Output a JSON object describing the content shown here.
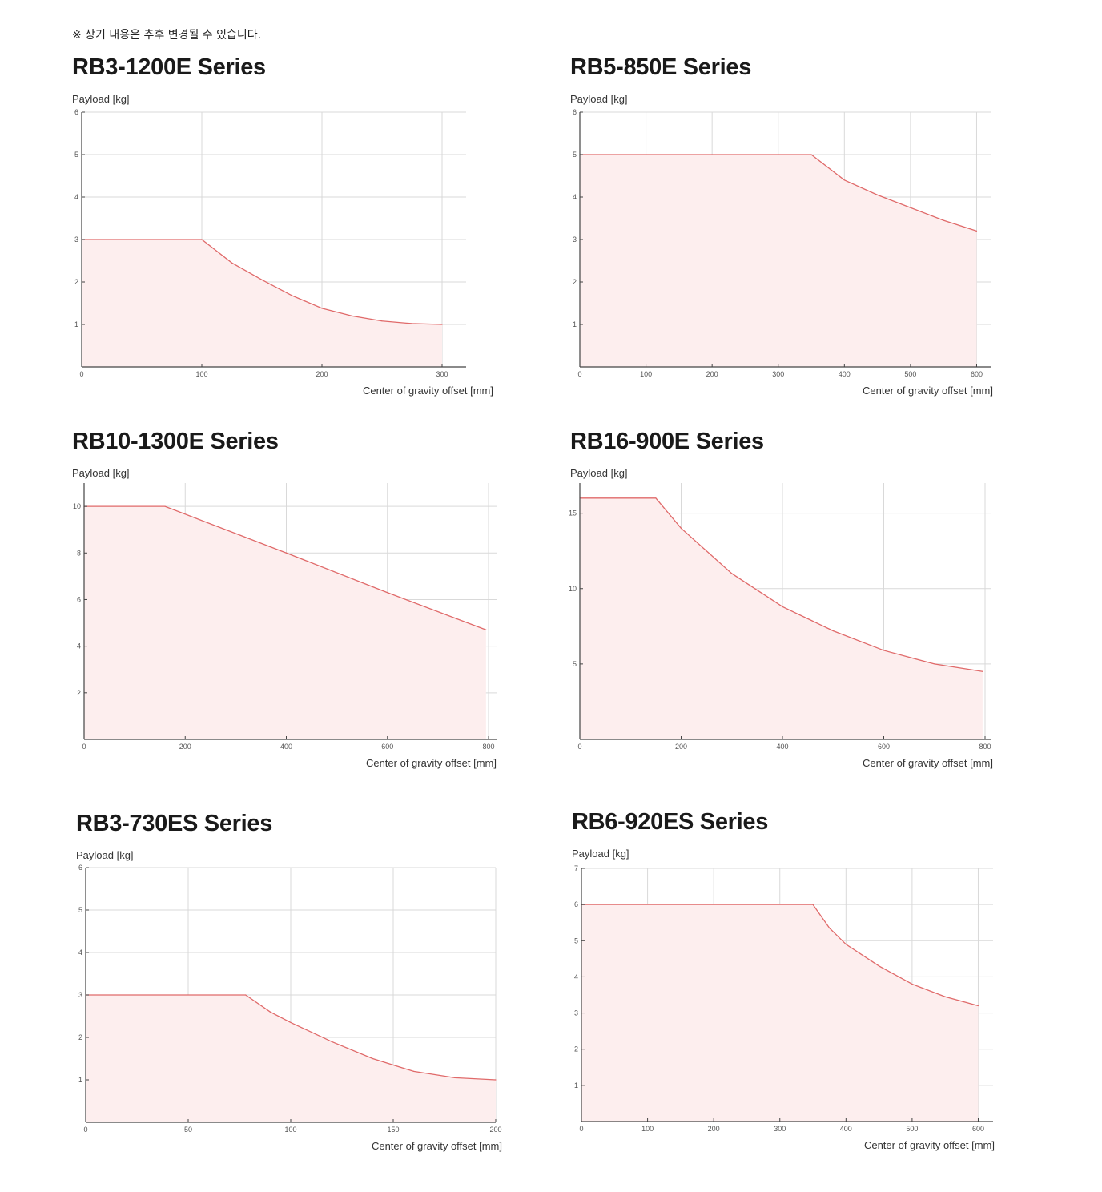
{
  "notice": "※ 상기 내용은 추후 변경될 수 있습니다.",
  "chart_data": [
    {
      "type": "area",
      "title": "RB3-1200E Series",
      "ylabel": "Payload [kg]",
      "xlabel": "Center of gravity offset [mm]",
      "xlim": [
        0,
        300
      ],
      "ylim": [
        0,
        6
      ],
      "xticks": [
        0,
        100,
        200,
        300
      ],
      "yticks": [
        1,
        2,
        3,
        4,
        5,
        6
      ],
      "xtick_labels": [
        "0",
        "100",
        "200",
        "300"
      ],
      "ytick_labels": [
        "1",
        "2",
        "3",
        "4",
        "5",
        "6"
      ],
      "grid": true,
      "series": [
        {
          "x": [
            0,
            100,
            125,
            150,
            175,
            200,
            225,
            250,
            275,
            300
          ],
          "y": [
            3,
            3,
            2.45,
            2.05,
            1.68,
            1.38,
            1.2,
            1.08,
            1.02,
            1.0
          ]
        }
      ]
    },
    {
      "type": "area",
      "title": "RB5-850E Series",
      "ylabel": "Payload [kg]",
      "xlabel": "Center of gravity offset [mm]",
      "xlim": [
        0,
        620
      ],
      "ylim": [
        0,
        6
      ],
      "xticks": [
        0,
        100,
        200,
        300,
        400,
        500,
        600
      ],
      "yticks": [
        1,
        2,
        3,
        4,
        5,
        6
      ],
      "xtick_labels": [
        "0",
        "100",
        "200",
        "300",
        "400",
        "500",
        "600"
      ],
      "ytick_labels": [
        "1",
        "2",
        "3",
        "4",
        "5",
        "6"
      ],
      "grid": true,
      "series": [
        {
          "x": [
            0,
            350,
            400,
            450,
            500,
            550,
            600
          ],
          "y": [
            5,
            5,
            4.4,
            4.05,
            3.75,
            3.45,
            3.2
          ]
        }
      ]
    },
    {
      "type": "area",
      "title": "RB10-1300E Series",
      "ylabel": "Payload [kg]",
      "xlabel": "Center of gravity offset [mm]",
      "xlim": [
        0,
        800
      ],
      "ylim": [
        0,
        11
      ],
      "xticks": [
        0,
        200,
        400,
        600,
        800
      ],
      "yticks": [
        2,
        4,
        6,
        8,
        10
      ],
      "xtick_labels": [
        "0",
        "200",
        "400",
        "600",
        "800"
      ],
      "ytick_labels": [
        "2",
        "4",
        "6",
        "8",
        "10"
      ],
      "grid": true,
      "series": [
        {
          "x": [
            0,
            160,
            400,
            600,
            795
          ],
          "y": [
            10,
            10,
            8.0,
            6.3,
            4.7
          ]
        }
      ]
    },
    {
      "type": "area",
      "title": "RB16-900E Series",
      "ylabel": "Payload [kg]",
      "xlabel": "Center of gravity offset [mm]",
      "xlim": [
        0,
        800
      ],
      "ylim": [
        0,
        17
      ],
      "xticks": [
        0,
        200,
        400,
        600,
        800
      ],
      "yticks": [
        5,
        10,
        15
      ],
      "xtick_labels": [
        "0",
        "200",
        "400",
        "600",
        "800"
      ],
      "ytick_labels": [
        "5",
        "10",
        "15"
      ],
      "grid": true,
      "series": [
        {
          "x": [
            0,
            150,
            200,
            300,
            400,
            500,
            600,
            700,
            795
          ],
          "y": [
            16,
            16,
            14.0,
            11.0,
            8.8,
            7.2,
            5.9,
            5.0,
            4.5
          ]
        }
      ]
    },
    {
      "type": "area",
      "title": "RB3-730ES Series",
      "ylabel": "Payload [kg]",
      "xlabel": "Center of gravity offset [mm]",
      "xlim": [
        0,
        200
      ],
      "ylim": [
        0,
        6
      ],
      "xticks": [
        0,
        50,
        100,
        150,
        200
      ],
      "yticks": [
        1,
        2,
        3,
        4,
        5,
        6
      ],
      "xtick_labels": [
        "0",
        "50",
        "100",
        "150",
        "200"
      ],
      "ytick_labels": [
        "1",
        "2",
        "3",
        "4",
        "5",
        "6"
      ],
      "grid": true,
      "series": [
        {
          "x": [
            0,
            78,
            90,
            100,
            120,
            140,
            160,
            180,
            200
          ],
          "y": [
            3,
            3,
            2.6,
            2.35,
            1.9,
            1.5,
            1.2,
            1.05,
            1.0
          ]
        }
      ]
    },
    {
      "type": "area",
      "title": "RB6-920ES Series",
      "ylabel": "Payload [kg]",
      "xlabel": "Center of gravity offset [mm]",
      "xlim": [
        0,
        620
      ],
      "ylim": [
        0,
        7
      ],
      "xticks": [
        0,
        100,
        200,
        300,
        400,
        500,
        600
      ],
      "yticks": [
        1,
        2,
        3,
        4,
        5,
        6,
        7
      ],
      "xtick_labels": [
        "0",
        "100",
        "200",
        "300",
        "400",
        "500",
        "600"
      ],
      "ytick_labels": [
        "1",
        "2",
        "3",
        "4",
        "5",
        "6",
        "7"
      ],
      "grid": true,
      "series": [
        {
          "x": [
            0,
            350,
            375,
            400,
            450,
            500,
            550,
            600
          ],
          "y": [
            6,
            6,
            5.35,
            4.9,
            4.3,
            3.8,
            3.45,
            3.2
          ]
        }
      ]
    }
  ]
}
